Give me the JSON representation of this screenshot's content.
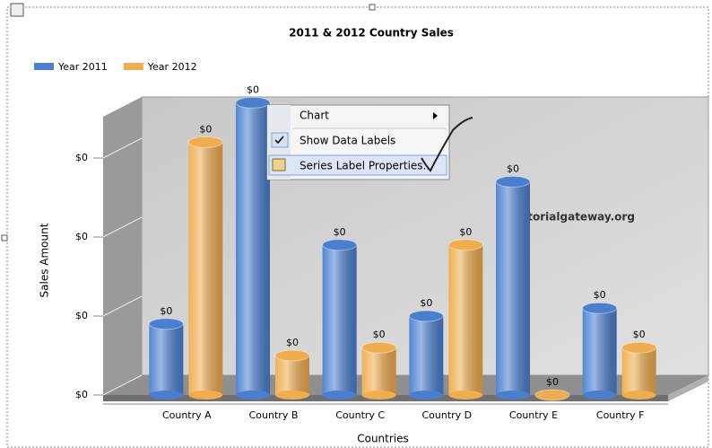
{
  "chart_data": {
    "type": "bar",
    "title": "2011 & 2012 Country Sales",
    "x_label": "Countries",
    "y_label": "Sales Amount",
    "categories": [
      "Country A",
      "Country B",
      "Country C",
      "Country D",
      "Country E",
      "Country F"
    ],
    "series": [
      {
        "name": "Year 2011",
        "color": "#4a7fd0",
        "values": [
          0.09,
          0.37,
          0.19,
          0.1,
          0.27,
          0.11
        ],
        "value_labels": [
          "$0",
          "$0",
          "$0",
          "$0",
          "$0",
          "$0"
        ]
      },
      {
        "name": "Year 2012",
        "color": "#f0ad4e",
        "values": [
          0.32,
          0.05,
          0.06,
          0.19,
          0,
          0.06
        ],
        "value_labels": [
          "$0",
          "$0",
          "$0",
          "$0",
          "$0",
          "$0"
        ]
      }
    ],
    "ylim": [
      0,
      0.4
    ],
    "yticks": [
      {
        "value": 0,
        "label": "$0"
      },
      {
        "value": 0.1,
        "label": "$0"
      },
      {
        "value": 0.2,
        "label": "$0"
      },
      {
        "value": 0.3,
        "label": "$0"
      }
    ],
    "grid": true,
    "legend": "top-left"
  },
  "watermark": "©tutorialgateway.org",
  "context_menu": {
    "items": [
      "Chart",
      "Show Data Labels",
      "Series Label Properties..."
    ]
  }
}
